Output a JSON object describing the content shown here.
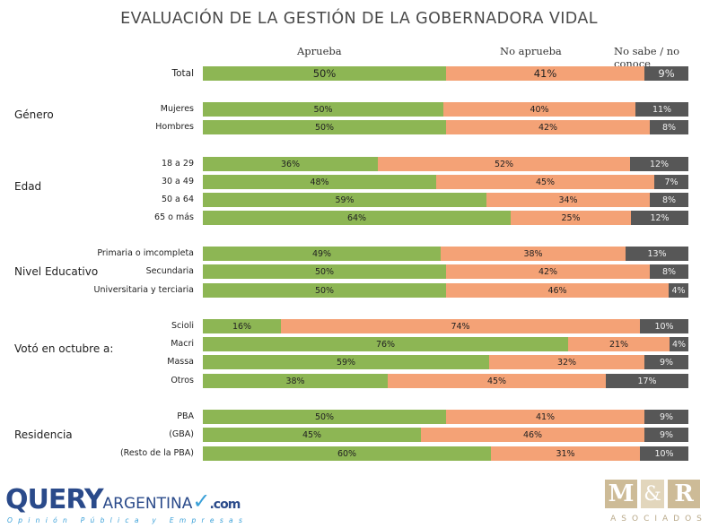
{
  "title": "EVALUACIÓN DE LA GESTIÓN DE LA GOBERNADORA VIDAL",
  "legend": {
    "aprueba": "Aprueba",
    "no_aprueba": "No aprueba",
    "ns_nc": "No sabe / no conoce"
  },
  "colors": {
    "aprueba": "#8db654",
    "no_aprueba": "#f4a276",
    "ns_nc": "#575757"
  },
  "groups": [
    "Género",
    "Edad",
    "Nivel Educativo",
    "Votó en octubre a:",
    "Residencia"
  ],
  "chart_data": {
    "type": "bar",
    "orientation": "horizontal-stacked-100",
    "title": "EVALUACIÓN DE LA GESTIÓN DE LA GOBERNADORA VIDAL",
    "series_names": [
      "Aprueba",
      "No aprueba",
      "No sabe / no conoce"
    ],
    "rows": [
      {
        "label": "Total",
        "group": "",
        "values": [
          50,
          41,
          9
        ],
        "labels": [
          "50%",
          "41%",
          "9%"
        ]
      },
      {
        "label": "Mujeres",
        "group": "Género",
        "values": [
          50,
          40,
          11
        ],
        "labels": [
          "50%",
          "40%",
          "11%"
        ]
      },
      {
        "label": "Hombres",
        "group": "Género",
        "values": [
          50,
          42,
          8
        ],
        "labels": [
          "50%",
          "42%",
          "8%"
        ]
      },
      {
        "label": "18 a 29",
        "group": "Edad",
        "values": [
          36,
          52,
          12
        ],
        "labels": [
          "36%",
          "52%",
          "12%"
        ]
      },
      {
        "label": "30 a 49",
        "group": "Edad",
        "values": [
          48,
          45,
          7
        ],
        "labels": [
          "48%",
          "45%",
          "7%"
        ]
      },
      {
        "label": "50 a 64",
        "group": "Edad",
        "values": [
          59,
          34,
          8
        ],
        "labels": [
          "59%",
          "34%",
          "8%"
        ]
      },
      {
        "label": "65 o más",
        "group": "Edad",
        "values": [
          64,
          25,
          12
        ],
        "labels": [
          "64%",
          "25%",
          "12%"
        ]
      },
      {
        "label": "Primaria o imcompleta",
        "group": "Nivel Educativo",
        "values": [
          49,
          38,
          13
        ],
        "labels": [
          "49%",
          "38%",
          "13%"
        ]
      },
      {
        "label": "Secundaria",
        "group": "Nivel Educativo",
        "values": [
          50,
          42,
          8
        ],
        "labels": [
          "50%",
          "42%",
          "8%"
        ]
      },
      {
        "label": "Universitaria y terciaria",
        "group": "Nivel Educativo",
        "values": [
          50,
          46,
          4
        ],
        "labels": [
          "50%",
          "46%",
          "4%"
        ]
      },
      {
        "label": "Scioli",
        "group": "Votó en octubre a:",
        "values": [
          16,
          74,
          10
        ],
        "labels": [
          "16%",
          "74%",
          "10%"
        ]
      },
      {
        "label": "Macri",
        "group": "Votó en octubre a:",
        "values": [
          76,
          21,
          4
        ],
        "labels": [
          "76%",
          "21%",
          "4%"
        ]
      },
      {
        "label": "Massa",
        "group": "Votó en octubre a:",
        "values": [
          59,
          32,
          9
        ],
        "labels": [
          "59%",
          "32%",
          "9%"
        ]
      },
      {
        "label": "Otros",
        "group": "Votó en octubre a:",
        "values": [
          38,
          45,
          17
        ],
        "labels": [
          "38%",
          "45%",
          "17%"
        ]
      },
      {
        "label": "PBA",
        "group": "Residencia",
        "values": [
          50,
          41,
          9
        ],
        "labels": [
          "50%",
          "41%",
          "9%"
        ]
      },
      {
        "label": "(GBA)",
        "group": "Residencia",
        "values": [
          45,
          46,
          9
        ],
        "labels": [
          "45%",
          "46%",
          "9%"
        ]
      },
      {
        "label": "(Resto de la PBA)",
        "group": "Residencia",
        "values": [
          60,
          31,
          10
        ],
        "labels": [
          "60%",
          "31%",
          "10%"
        ]
      }
    ]
  },
  "logos": {
    "query_main": "QUERY",
    "query_rest": "ARGENTINA",
    "query_dotcom": ".com",
    "query_tagline": "Opinión Pública y Empresas",
    "mr_left": "M",
    "mr_amp": "&",
    "mr_right": "R",
    "mr_sub": "ASOCIADOS"
  }
}
